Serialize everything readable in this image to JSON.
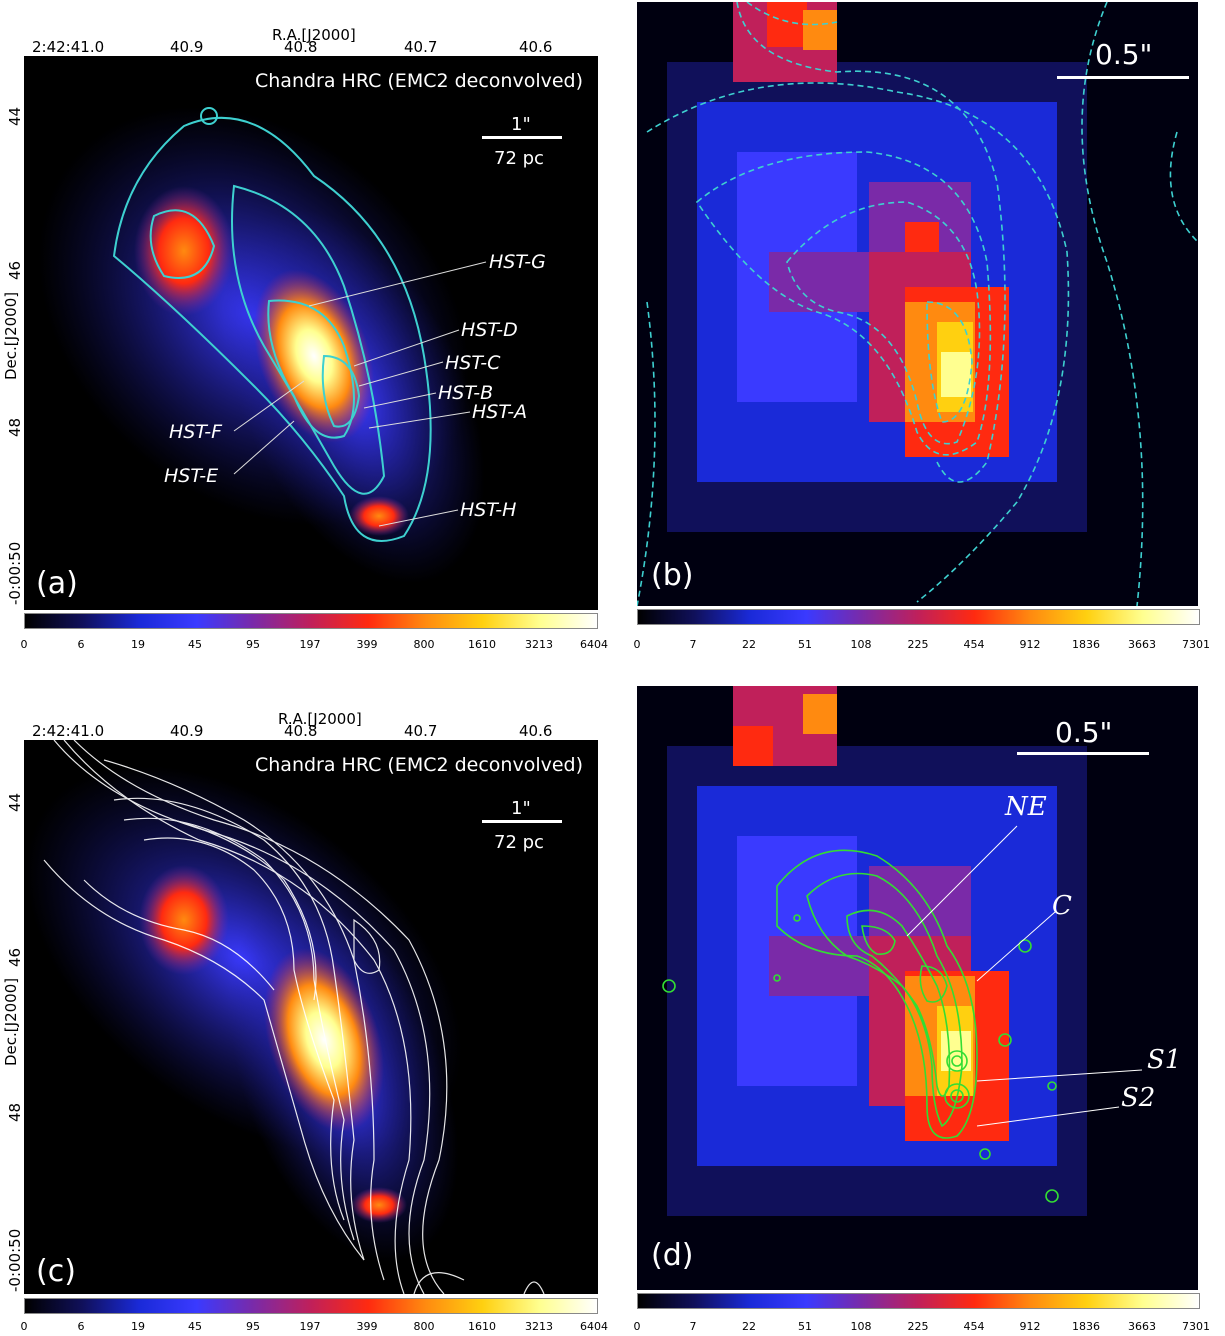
{
  "panels": {
    "a": {
      "tag": "(a)",
      "title": "Chandra HRC (EMC2 deconvolved)",
      "ra_label": "R.A.[J2000]",
      "dec_label": "Dec.[J2000]",
      "ra_ticks": [
        "2:42:41.0",
        "40.9",
        "40.8",
        "40.7",
        "40.6"
      ],
      "dec_ticks": [
        "44",
        "46",
        "48",
        "-0:00:50"
      ],
      "scalebar_top": "1\"",
      "scalebar_bottom": "72 pc",
      "annotations": [
        "HST-G",
        "HST-D",
        "HST-C",
        "HST-B",
        "HST-A",
        "HST-F",
        "HST-E",
        "HST-H"
      ],
      "colorbar_ticks": [
        "0",
        "6",
        "19",
        "45",
        "95",
        "197",
        "399",
        "800",
        "1610",
        "3213",
        "6404"
      ],
      "contour_color": "#3ed0d0"
    },
    "b": {
      "tag": "(b)",
      "scalebar_label": "0.5\"",
      "colorbar_ticks": [
        "0",
        "7",
        "22",
        "51",
        "108",
        "225",
        "454",
        "912",
        "1836",
        "3663",
        "7301"
      ],
      "contour_color": "#3ed0d0"
    },
    "c": {
      "tag": "(c)",
      "title": "Chandra HRC (EMC2 deconvolved)",
      "ra_label": "R.A.[J2000]",
      "dec_label": "Dec.[J2000]",
      "ra_ticks": [
        "2:42:41.0",
        "40.9",
        "40.8",
        "40.7",
        "40.6"
      ],
      "dec_ticks": [
        "44",
        "46",
        "48",
        "-0:00:50"
      ],
      "scalebar_top": "1\"",
      "scalebar_bottom": "72 pc",
      "colorbar_ticks": [
        "0",
        "6",
        "19",
        "45",
        "95",
        "197",
        "399",
        "800",
        "1610",
        "3213",
        "6404"
      ],
      "contour_color": "#ffffff"
    },
    "d": {
      "tag": "(d)",
      "scalebar_label": "0.5\"",
      "annotations": [
        "NE",
        "C",
        "S1",
        "S2"
      ],
      "colorbar_ticks": [
        "0",
        "7",
        "22",
        "51",
        "108",
        "225",
        "454",
        "912",
        "1836",
        "3663",
        "7301"
      ],
      "contour_color": "#33dd33"
    }
  },
  "colormap": [
    "#000000",
    "#10105a",
    "#1a2ad8",
    "#3a3aff",
    "#7a2aa8",
    "#c0205a",
    "#ff2a10",
    "#ff8a10",
    "#ffd010",
    "#ffff90",
    "#ffffff"
  ]
}
